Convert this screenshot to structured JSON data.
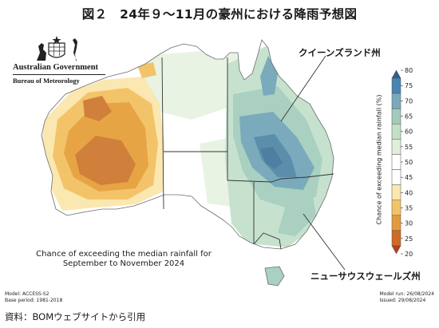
{
  "title": "図２　24年９～11月の豪州における降雨予想図",
  "agency": {
    "government": "Australian Government",
    "bureau": "Bureau of Meteorology"
  },
  "region_labels": {
    "queensland": "クイーンズランド州",
    "nsw": "ニューサウスウェールズ州"
  },
  "caption": {
    "line1": "Chance of exceeding the median rainfall for",
    "line2": "September to November 2024"
  },
  "meta_left": {
    "model": "Model: ACCESS-S2",
    "base_period": "Base period: 1981-2018"
  },
  "meta_right": {
    "model_run": "Model run: 26/08/2024",
    "issued": "Issued: 29/08/2024"
  },
  "source_note": "資料：BOMウェブサイトから引用",
  "colorbar": {
    "label": "Chance of exceeding median rainfall (%)",
    "ticks": [
      "80",
      "75",
      "70",
      "65",
      "60",
      "55",
      "50",
      "45",
      "40",
      "35",
      "30",
      "25",
      "20"
    ],
    "colors": [
      "#2f5f8f",
      "#4a84b0",
      "#7aaabc",
      "#a3cbbd",
      "#c4e0c8",
      "#e0efdc",
      "#ffffff",
      "#ffffff",
      "#fbe7b0",
      "#f3c36a",
      "#e39a3a",
      "#cf6b25",
      "#b0421a"
    ]
  },
  "map_colors": {
    "very_dry": "#c8712e",
    "dry": "#e7a445",
    "slightly_dry": "#f5d494",
    "neutral_green": "#e3f0dc",
    "wet": "#a9d0c0",
    "very_wet": "#6d9fb4",
    "wettest": "#4f7fa0"
  }
}
